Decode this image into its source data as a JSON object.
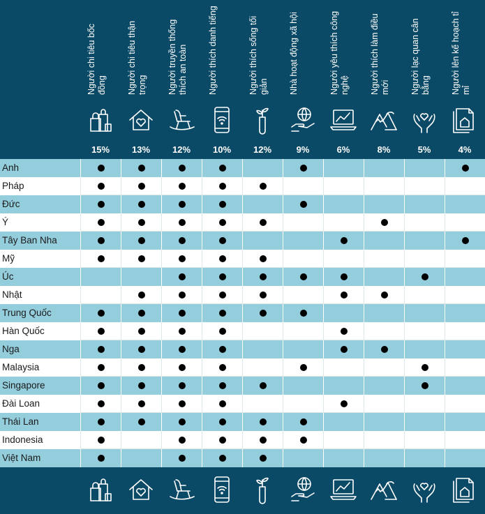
{
  "chart_data": {
    "type": "table",
    "columns": [
      {
        "label": "Người chi tiêu bốc đồng",
        "pct": "15%",
        "icon": "shopping-bags-icon"
      },
      {
        "label": "Người chi tiêu thận trọng",
        "pct": "13%",
        "icon": "house-heart-icon"
      },
      {
        "label": "Người truyền thống thích an toàn",
        "pct": "12%",
        "icon": "rocking-chair-icon"
      },
      {
        "label": "Người thích danh tiếng",
        "pct": "10%",
        "icon": "smartphone-wifi-icon"
      },
      {
        "label": "Người thích sống tối giản",
        "pct": "12%",
        "icon": "sprout-tube-icon"
      },
      {
        "label": "Nhà hoạt động xã hội",
        "pct": "9%",
        "icon": "globe-hand-icon"
      },
      {
        "label": "Người yêu thích công nghệ",
        "pct": "6%",
        "icon": "laptop-chart-icon"
      },
      {
        "label": "Người thích làm điều mới",
        "pct": "8%",
        "icon": "mountains-icon"
      },
      {
        "label": "Người lạc quan cân bằng",
        "pct": "5%",
        "icon": "hands-heart-icon"
      },
      {
        "label": "Người lên kế hoạch tỉ mỉ",
        "pct": "4%",
        "icon": "documents-home-icon"
      }
    ],
    "rows": [
      {
        "country": "Anh",
        "marks": [
          1,
          1,
          1,
          1,
          0,
          1,
          0,
          0,
          0,
          1
        ]
      },
      {
        "country": "Pháp",
        "marks": [
          1,
          1,
          1,
          1,
          1,
          0,
          0,
          0,
          0,
          0
        ]
      },
      {
        "country": "Đức",
        "marks": [
          1,
          1,
          1,
          1,
          0,
          1,
          0,
          0,
          0,
          0
        ]
      },
      {
        "country": "Ý",
        "marks": [
          1,
          1,
          1,
          1,
          1,
          0,
          0,
          1,
          0,
          0
        ]
      },
      {
        "country": "Tây Ban Nha",
        "marks": [
          1,
          1,
          1,
          1,
          0,
          0,
          1,
          0,
          0,
          1
        ]
      },
      {
        "country": "Mỹ",
        "marks": [
          1,
          1,
          1,
          1,
          1,
          0,
          0,
          0,
          0,
          0
        ]
      },
      {
        "country": "Úc",
        "marks": [
          0,
          0,
          1,
          1,
          1,
          1,
          1,
          0,
          1,
          0
        ]
      },
      {
        "country": "Nhật",
        "marks": [
          0,
          1,
          1,
          1,
          1,
          0,
          1,
          1,
          0,
          0
        ]
      },
      {
        "country": "Trung Quốc",
        "marks": [
          1,
          1,
          1,
          1,
          1,
          1,
          0,
          0,
          0,
          0
        ]
      },
      {
        "country": "Hàn Quốc",
        "marks": [
          1,
          1,
          1,
          1,
          0,
          0,
          1,
          0,
          0,
          0
        ]
      },
      {
        "country": "Nga",
        "marks": [
          1,
          1,
          1,
          1,
          0,
          0,
          1,
          1,
          0,
          0
        ]
      },
      {
        "country": "Malaysia",
        "marks": [
          1,
          1,
          1,
          1,
          0,
          1,
          0,
          0,
          1,
          0
        ]
      },
      {
        "country": "Singapore",
        "marks": [
          1,
          1,
          1,
          1,
          1,
          0,
          0,
          0,
          1,
          0
        ]
      },
      {
        "country": "Đài Loan",
        "marks": [
          1,
          1,
          1,
          1,
          0,
          0,
          1,
          0,
          0,
          0
        ]
      },
      {
        "country": "Thái Lan",
        "marks": [
          1,
          1,
          1,
          1,
          1,
          1,
          0,
          0,
          0,
          0
        ]
      },
      {
        "country": "Indonesia",
        "marks": [
          1,
          0,
          1,
          1,
          1,
          1,
          0,
          0,
          0,
          0
        ]
      },
      {
        "country": "Việt Nam",
        "marks": [
          1,
          0,
          1,
          1,
          1,
          0,
          0,
          0,
          0,
          0
        ]
      }
    ],
    "colors": {
      "header_bg": "#0b4a66",
      "band": "#94cedd",
      "mark": "#000000",
      "header_text": "#ffffff"
    }
  }
}
